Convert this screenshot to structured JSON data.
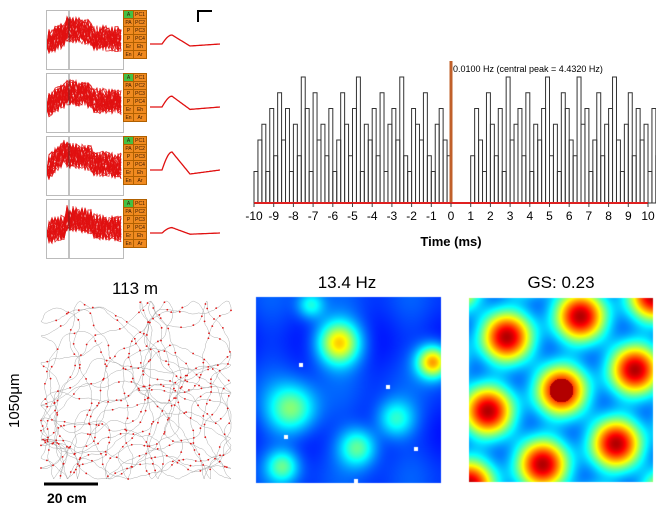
{
  "waveforms": {
    "channel_labels": [
      "PC1",
      "PC2",
      "PC3",
      "PC4",
      "Eh",
      "Ar"
    ],
    "short_labels": [
      "A",
      "PA",
      "P",
      "P",
      "Er",
      "En"
    ]
  },
  "chart_data": [
    {
      "type": "bar",
      "title": "",
      "annotation": "0.0100 Hz (central peak = 4.4320 Hz)",
      "xlabel": "Time (ms)",
      "ylabel": "",
      "xlim": [
        -10,
        10
      ],
      "x_ticks": [
        "-10",
        "-9",
        "-8",
        "-7",
        "-6",
        "-5",
        "-4",
        "-3",
        "-2",
        "-1",
        "0",
        "1",
        "2",
        "3",
        "4",
        "5",
        "6",
        "7",
        "8",
        "9",
        "10"
      ],
      "bin_width_ms": 0.2,
      "central_gap_ms": [
        -1,
        1
      ],
      "values_left": [
        2,
        4,
        5,
        2,
        6,
        3,
        7,
        4,
        6,
        2,
        5,
        3,
        8,
        6,
        2,
        7,
        4,
        5,
        3,
        6,
        2,
        4,
        7,
        5,
        3,
        6,
        8,
        2,
        5,
        4,
        6,
        3,
        7,
        2,
        5,
        6,
        4,
        8,
        3,
        2,
        6,
        5,
        4,
        7,
        3,
        2,
        5,
        6,
        4,
        3
      ],
      "values_right": [
        3,
        6,
        4,
        2,
        7,
        5,
        3,
        6,
        2,
        8,
        4,
        5,
        6,
        3,
        7,
        2,
        5,
        4,
        6,
        8,
        3,
        5,
        2,
        7,
        6,
        4,
        3,
        8,
        5,
        6,
        2,
        4,
        7,
        3,
        5,
        6,
        8,
        4,
        2,
        5,
        7,
        3,
        6,
        4,
        5,
        2,
        6,
        3,
        7,
        4
      ],
      "colors": {
        "bars": "#333333",
        "center_line": "#c0602a",
        "axis": "#e02020"
      }
    },
    {
      "type": "scatter",
      "title": "113 m",
      "description": "trajectory with spike locations",
      "colors": {
        "path": "#9a9a9a",
        "spikes": "#e01818"
      }
    },
    {
      "type": "heatmap",
      "title": "13.4 Hz",
      "colormap": "jet"
    },
    {
      "type": "heatmap",
      "title": "GS: 0.23",
      "colormap": "jet"
    }
  ],
  "scale_bars": {
    "vertical_label": "1050μm",
    "horizontal_label": "20 cm"
  }
}
